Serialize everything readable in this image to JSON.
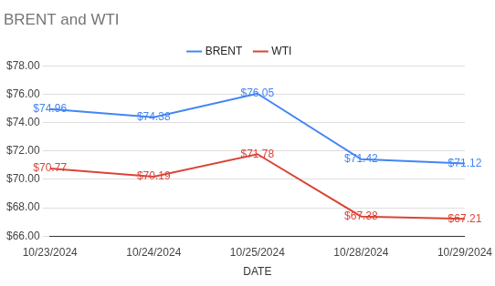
{
  "chart_data": {
    "type": "line",
    "title": "BRENT and WTI",
    "x_label": "DATE",
    "categories": [
      "10/23/2024",
      "10/24/2024",
      "10/25/2024",
      "10/28/2024",
      "10/29/2024"
    ],
    "series": [
      {
        "name": "BRENT",
        "color": "#4285f4",
        "values": [
          74.96,
          74.38,
          76.05,
          71.42,
          71.12
        ],
        "value_labels": [
          "$74.96",
          "$74.38",
          "$76.05",
          "$71.42",
          "$71.12"
        ]
      },
      {
        "name": "WTI",
        "color": "#db4437",
        "values": [
          70.77,
          70.19,
          71.78,
          67.38,
          67.21
        ],
        "value_labels": [
          "$70.77",
          "$70.19",
          "$71.78",
          "$67.38",
          "$67.21"
        ]
      }
    ],
    "ylim": [
      66,
      78
    ],
    "yticks": [
      {
        "value": 66,
        "label": "$66.00"
      },
      {
        "value": 68,
        "label": "$68.00"
      },
      {
        "value": 70,
        "label": "$70.00"
      },
      {
        "value": 72,
        "label": "$72.00"
      },
      {
        "value": 74,
        "label": "$74.00"
      },
      {
        "value": 76,
        "label": "$76.00"
      },
      {
        "value": 78,
        "label": "$78.00"
      }
    ],
    "grid": true,
    "legend": "top",
    "data_labels": true
  }
}
